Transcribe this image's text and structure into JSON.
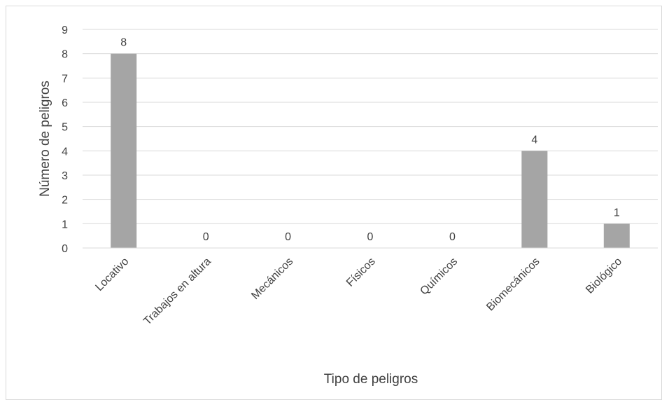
{
  "chart_data": {
    "type": "bar",
    "categories": [
      "Locativo",
      "Trabajos en altura",
      "Mecánicos",
      "Físicos",
      "Químicos",
      "Biomecánicos",
      "Biológico"
    ],
    "values": [
      8,
      0,
      0,
      0,
      0,
      4,
      1
    ],
    "title": "",
    "xlabel": "Tipo de peligros",
    "ylabel": "Número de peligros",
    "ylim": [
      0,
      9
    ],
    "yticks": [
      "0",
      "1",
      "2",
      "3",
      "4",
      "5",
      "6",
      "7",
      "8",
      "9"
    ],
    "data_labels": [
      "8",
      "0",
      "0",
      "0",
      "0",
      "4",
      "1"
    ],
    "grid": true,
    "legend": "none",
    "bar_color": "#a5a5a5",
    "grid_color": "#d9d9d9"
  }
}
